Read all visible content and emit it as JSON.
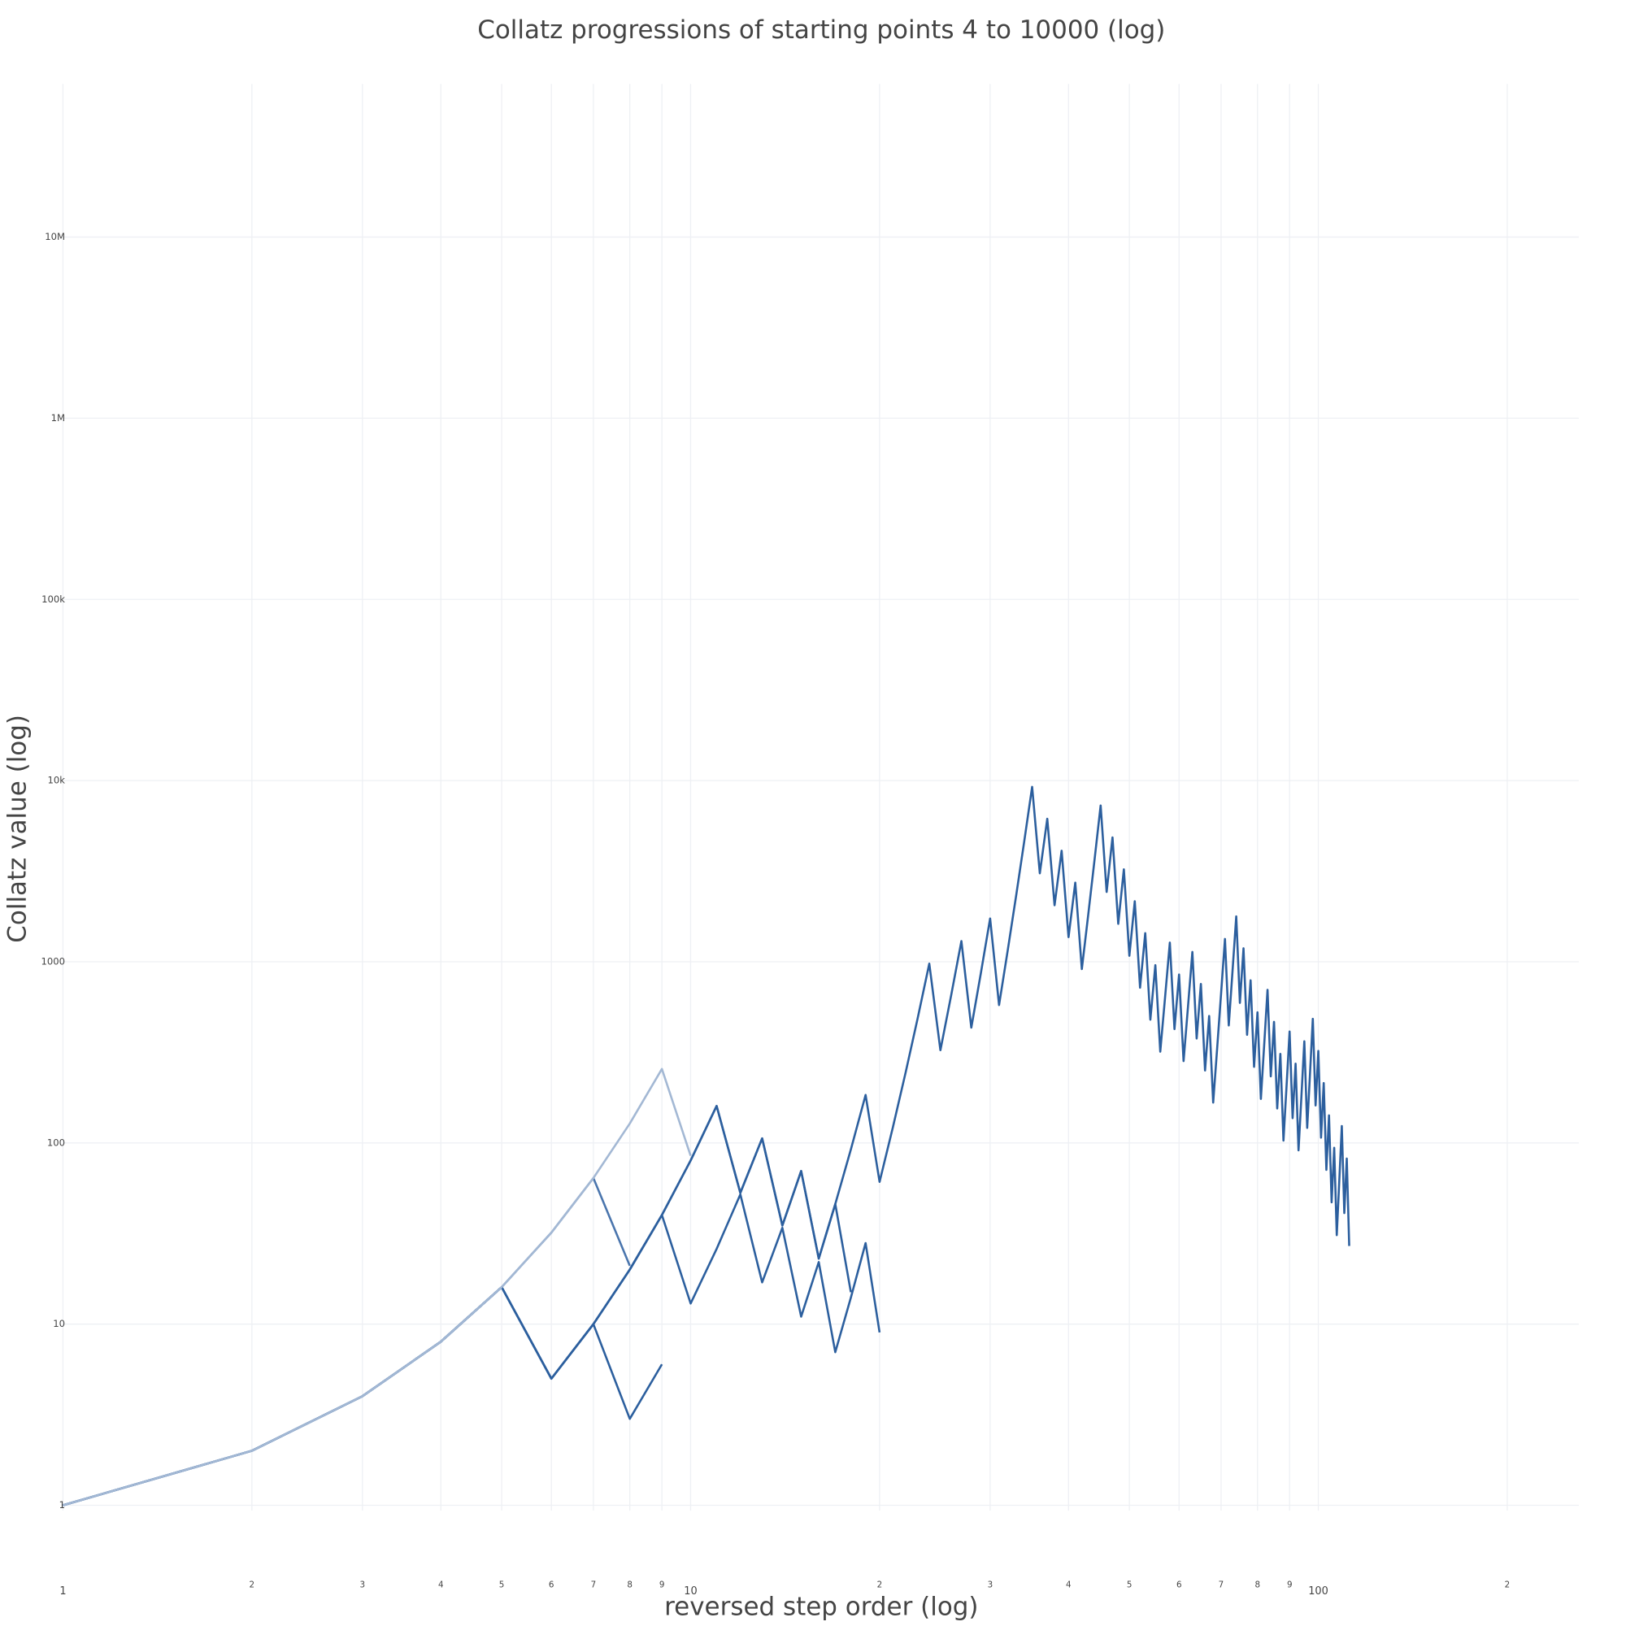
{
  "chart_data": {
    "type": "line",
    "title": "Collatz progressions of starting points 4 to 10000 (log)",
    "xlabel": "reversed step order (log)",
    "ylabel": "Collatz value (log)",
    "xscale": "log",
    "yscale": "log",
    "grid": true,
    "xlim": [
      1,
      260
    ],
    "ylim": [
      0.42,
      70000000
    ],
    "xticks": [
      1,
      2,
      3,
      4,
      5,
      6,
      7,
      8,
      9,
      10,
      {
        "value": 20,
        "label": "2"
      },
      {
        "value": 30,
        "label": "3"
      },
      {
        "value": 40,
        "label": "4"
      },
      {
        "value": 50,
        "label": "5"
      },
      {
        "value": 60,
        "label": "6"
      },
      {
        "value": 70,
        "label": "7"
      },
      {
        "value": 80,
        "label": "8"
      },
      {
        "value": 90,
        "label": "9"
      },
      100,
      {
        "value": 200,
        "label": "2"
      }
    ],
    "yticks": [
      1,
      10,
      100,
      1000,
      {
        "value": 10000,
        "label": "10k"
      },
      {
        "value": 100000,
        "label": "100k"
      },
      {
        "value": 1000000,
        "label": "1M"
      },
      {
        "value": 10000000,
        "label": "10M"
      }
    ],
    "series": [
      {
        "color": "#2c5f9e",
        "x": [
          1,
          2,
          3,
          4,
          5,
          6,
          7,
          8,
          9,
          10,
          11,
          12,
          13,
          14,
          15,
          16,
          17,
          18,
          19,
          20,
          21,
          22,
          23,
          24,
          25,
          26,
          27,
          28,
          29,
          30,
          31,
          32,
          33,
          34,
          35,
          36,
          37,
          38,
          39,
          40,
          41,
          42,
          43,
          44,
          45,
          46,
          47,
          48,
          49,
          50,
          51,
          52,
          53,
          54,
          55,
          56,
          57,
          58,
          59,
          60,
          61,
          62,
          63,
          64,
          65,
          66,
          67,
          68,
          69,
          70,
          71,
          72,
          73,
          74,
          75,
          76,
          77,
          78,
          79,
          80,
          81,
          82,
          83,
          84,
          85,
          86,
          87,
          88,
          89,
          90,
          91,
          92,
          93,
          94,
          95,
          96,
          97,
          98,
          99,
          100,
          101,
          102,
          103,
          104,
          105,
          106,
          107,
          108,
          109,
          110,
          111,
          112
        ],
        "values": [
          1,
          2,
          4,
          8,
          16,
          5,
          10,
          20,
          40,
          80,
          160,
          53,
          106,
          35,
          70,
          23,
          46,
          92,
          184,
          61,
          122,
          244,
          488,
          976,
          325,
          650,
          1300,
          433,
          866,
          1732,
          577,
          1154,
          2308,
          4616,
          9232,
          3077,
          6154,
          2051,
          4102,
          1367,
          2734,
          911,
          1822,
          3644,
          7288,
          2429,
          4858,
          1619,
          3238,
          1079,
          2158,
          719,
          1438,
          479,
          958,
          319,
          638,
          1276,
          425,
          850,
          283,
          566,
          1132,
          377,
          754,
          251,
          502,
          167,
          334,
          668,
          1336,
          445,
          890,
          1780,
          593,
          1186,
          395,
          790,
          263,
          526,
          175,
          350,
          700,
          233,
          466,
          155,
          310,
          103,
          206,
          412,
          137,
          274,
          91,
          182,
          364,
          121,
          242,
          484,
          161,
          322,
          107,
          214,
          71,
          142,
          47,
          94,
          31,
          62,
          124,
          41,
          82,
          27
        ]
      },
      {
        "color": "#2c5f9e",
        "x": [
          1,
          2,
          3,
          4,
          5,
          6,
          7,
          8,
          9,
          10,
          11,
          12,
          13,
          14,
          15,
          16,
          17,
          18
        ],
        "values": [
          1,
          2,
          4,
          8,
          16,
          5,
          10,
          20,
          40,
          80,
          160,
          53,
          106,
          35,
          70,
          23,
          46,
          15
        ]
      },
      {
        "color": "#2c5f9e",
        "x": [
          1,
          2,
          3,
          4,
          5,
          6,
          7,
          8,
          9,
          10,
          11,
          12,
          13,
          14,
          15,
          16,
          17,
          18,
          19,
          20
        ],
        "values": [
          1,
          2,
          4,
          8,
          16,
          5,
          10,
          20,
          40,
          13,
          26,
          52,
          17,
          34,
          11,
          22,
          7,
          14,
          28,
          9
        ]
      },
      {
        "color": "#2c5f9e",
        "x": [
          1,
          2,
          3,
          4,
          5,
          6,
          7,
          8,
          9
        ],
        "values": [
          1,
          2,
          4,
          8,
          16,
          5,
          10,
          3,
          6
        ]
      },
      {
        "color": "#4a75ad",
        "x": [
          1,
          2,
          3,
          4,
          5,
          6,
          7,
          8
        ],
        "values": [
          1,
          2,
          4,
          8,
          16,
          32,
          64,
          21
        ]
      },
      {
        "color": "#a3b8d4",
        "x": [
          1,
          2,
          3,
          4,
          5,
          6,
          7,
          8,
          9,
          10
        ],
        "values": [
          1,
          2,
          4,
          8,
          16,
          32,
          64,
          128,
          256,
          85
        ]
      }
    ]
  }
}
